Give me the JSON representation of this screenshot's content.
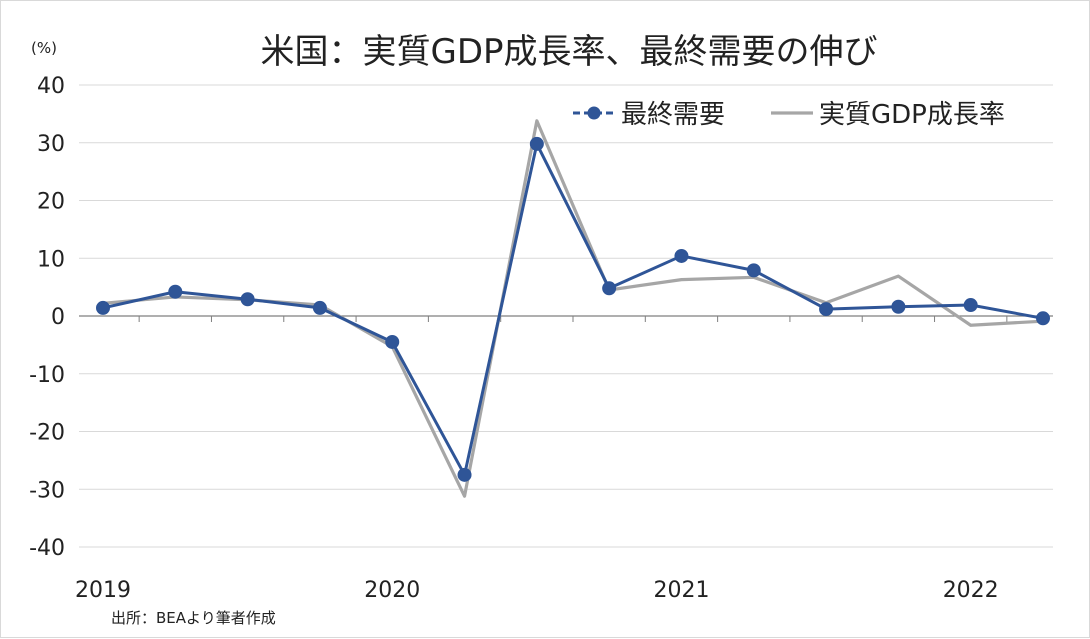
{
  "chart_data": {
    "type": "line",
    "title": "米国：実質GDP成長率、最終需要の伸び",
    "ylabel": "(%)",
    "source": "出所：BEAより筆者作成",
    "ylim": [
      -40,
      40
    ],
    "yticks": [
      "40",
      "30",
      "20",
      "10",
      "0",
      "-10",
      "-20",
      "-30",
      "-40"
    ],
    "x_tick_labels": [
      "2019",
      "2020",
      "2021",
      "2022"
    ],
    "grid": true,
    "legend_position": "top-right",
    "x": [
      "2019Q1",
      "2019Q2",
      "2019Q3",
      "2019Q4",
      "2020Q1",
      "2020Q2",
      "2020Q3",
      "2020Q4",
      "2021Q1",
      "2021Q2",
      "2021Q3",
      "2021Q4",
      "2022Q1",
      "2022Q2"
    ],
    "series": [
      {
        "name": "最終需要",
        "color": "#2f5597",
        "marker": "circle",
        "values": [
          1.4,
          4.2,
          2.9,
          1.4,
          -4.5,
          -27.5,
          29.8,
          4.8,
          10.4,
          7.9,
          1.2,
          1.6,
          1.9,
          -0.4
        ]
      },
      {
        "name": "実質GDP成長率",
        "color": "#a6a6a6",
        "marker": "none",
        "values": [
          2.2,
          3.3,
          2.8,
          1.9,
          -5.3,
          -31.2,
          33.8,
          4.5,
          6.3,
          6.7,
          2.3,
          6.9,
          -1.6,
          -0.9
        ]
      }
    ]
  }
}
